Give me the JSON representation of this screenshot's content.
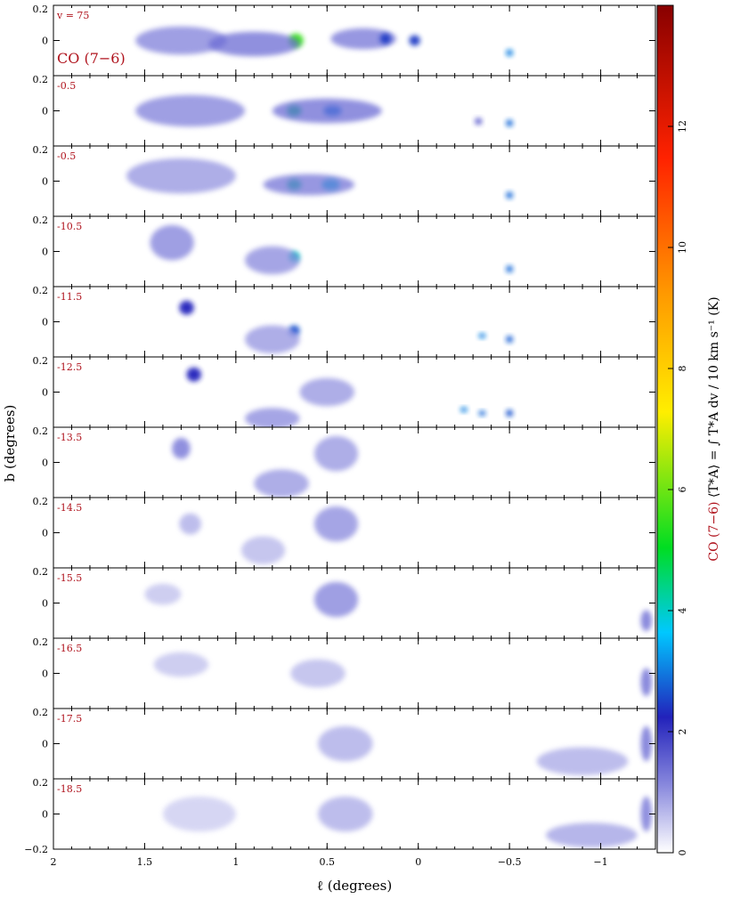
{
  "chart_data": {
    "type": "heatmap",
    "line_label": "CO (7−6)",
    "vlsr_label": "v = 75",
    "xlabel": "ℓ (degrees)",
    "ylabel": "b (degrees)",
    "xlim": [
      2,
      -1.3
    ],
    "ylim": [
      -0.2,
      0.2
    ],
    "x_ticks": [
      {
        "value": 2,
        "label": "2"
      },
      {
        "value": 1.5,
        "label": "1.5"
      },
      {
        "value": 1,
        "label": "1"
      },
      {
        "value": 0.5,
        "label": "0.5"
      },
      {
        "value": 0,
        "label": "0"
      },
      {
        "value": -0.5,
        "label": "−0.5"
      },
      {
        "value": -1,
        "label": "−1"
      }
    ],
    "y_ticks": [
      {
        "value": 0.2,
        "label": "0.2"
      },
      {
        "value": 0,
        "label": "0"
      },
      {
        "value": -0.2,
        "label": "−0.2"
      }
    ],
    "panels": [
      {
        "velocity": "75",
        "label": "v = 75"
      },
      {
        "velocity": "-0.5",
        "label": "-0.5"
      },
      {
        "velocity": "-0.5",
        "label": "-0.5"
      },
      {
        "velocity": "-10.5",
        "label": "-10.5"
      },
      {
        "velocity": "-11.5",
        "label": "-11.5"
      },
      {
        "velocity": "-12.5",
        "label": "-12.5"
      },
      {
        "velocity": "-13.5",
        "label": "-13.5"
      },
      {
        "velocity": "-14.5",
        "label": "-14.5"
      },
      {
        "velocity": "-15.5",
        "label": "-15.5"
      },
      {
        "velocity": "-16.5",
        "label": "-16.5"
      },
      {
        "velocity": "-17.5",
        "label": "-17.5"
      },
      {
        "velocity": "-18.5",
        "label": "-18.5"
      }
    ],
    "colorbar": {
      "label_prefix": "CO (7−6)",
      "label_rest": " ⟨T*A⟩ = ∫ T*A dv / 10 km s⁻¹ (K)",
      "range": [
        0,
        14
      ],
      "ticks": [
        {
          "value": 0,
          "label": "0"
        },
        {
          "value": 2,
          "label": "2"
        },
        {
          "value": 4,
          "label": "4"
        },
        {
          "value": 6,
          "label": "6"
        },
        {
          "value": 8,
          "label": "8"
        },
        {
          "value": 10,
          "label": "10"
        },
        {
          "value": 12,
          "label": "12"
        }
      ],
      "colors": [
        "#ffffff",
        "#3333cc",
        "#00d0ff",
        "#00dd00",
        "#ffee00",
        "#ff8800",
        "#ff2200",
        "#990000"
      ]
    },
    "emission_features": [
      {
        "panel": 0,
        "l": 1.3,
        "b": 0.0,
        "sl": 0.25,
        "sb": 0.08,
        "value": 1.2
      },
      {
        "panel": 0,
        "l": 0.67,
        "b": 0.0,
        "sl": 0.04,
        "sb": 0.04,
        "value": 5.5
      },
      {
        "panel": 0,
        "l": 0.9,
        "b": -0.02,
        "sl": 0.25,
        "sb": 0.07,
        "value": 1.4
      },
      {
        "panel": 0,
        "l": 0.3,
        "b": 0.01,
        "sl": 0.18,
        "sb": 0.06,
        "value": 1.3
      },
      {
        "panel": 0,
        "l": 0.18,
        "b": 0.01,
        "sl": 0.03,
        "sb": 0.03,
        "value": 2.4
      },
      {
        "panel": 0,
        "l": 0.02,
        "b": 0.0,
        "sl": 0.03,
        "sb": 0.03,
        "value": 2.4
      },
      {
        "panel": 0,
        "l": -0.5,
        "b": -0.07,
        "sl": 0.015,
        "sb": 0.02,
        "value": 3.0
      },
      {
        "panel": 1,
        "l": 1.25,
        "b": 0.0,
        "sl": 0.3,
        "sb": 0.09,
        "value": 1.2
      },
      {
        "panel": 1,
        "l": 0.68,
        "b": 0.0,
        "sl": 0.04,
        "sb": 0.03,
        "value": 4.5
      },
      {
        "panel": 1,
        "l": 0.47,
        "b": 0.0,
        "sl": 0.05,
        "sb": 0.03,
        "value": 3.0
      },
      {
        "panel": 1,
        "l": 0.5,
        "b": 0.0,
        "sl": 0.3,
        "sb": 0.07,
        "value": 1.4
      },
      {
        "panel": 1,
        "l": -0.33,
        "b": -0.06,
        "sl": 0.02,
        "sb": 0.02,
        "value": 2.0
      },
      {
        "panel": 1,
        "l": -0.5,
        "b": -0.07,
        "sl": 0.015,
        "sb": 0.02,
        "value": 2.8
      },
      {
        "panel": 2,
        "l": 1.3,
        "b": 0.03,
        "sl": 0.3,
        "sb": 0.1,
        "value": 1.0
      },
      {
        "panel": 2,
        "l": 0.68,
        "b": -0.02,
        "sl": 0.04,
        "sb": 0.03,
        "value": 4.3
      },
      {
        "panel": 2,
        "l": 0.48,
        "b": -0.02,
        "sl": 0.05,
        "sb": 0.03,
        "value": 3.8
      },
      {
        "panel": 2,
        "l": 0.6,
        "b": -0.02,
        "sl": 0.25,
        "sb": 0.06,
        "value": 1.3
      },
      {
        "panel": 2,
        "l": -0.5,
        "b": -0.08,
        "sl": 0.015,
        "sb": 0.02,
        "value": 2.8
      },
      {
        "panel": 3,
        "l": 1.35,
        "b": 0.05,
        "sl": 0.12,
        "sb": 0.1,
        "value": 1.2
      },
      {
        "panel": 3,
        "l": 0.68,
        "b": -0.03,
        "sl": 0.03,
        "sb": 0.03,
        "value": 4.0
      },
      {
        "panel": 3,
        "l": 0.8,
        "b": -0.05,
        "sl": 0.15,
        "sb": 0.08,
        "value": 1.1
      },
      {
        "panel": 3,
        "l": -0.5,
        "b": -0.1,
        "sl": 0.015,
        "sb": 0.02,
        "value": 2.8
      },
      {
        "panel": 4,
        "l": 1.27,
        "b": 0.08,
        "sl": 0.04,
        "sb": 0.04,
        "value": 2.2
      },
      {
        "panel": 4,
        "l": 0.68,
        "b": -0.05,
        "sl": 0.03,
        "sb": 0.03,
        "value": 2.6
      },
      {
        "panel": 4,
        "l": 0.8,
        "b": -0.1,
        "sl": 0.15,
        "sb": 0.08,
        "value": 1.0
      },
      {
        "panel": 4,
        "l": -0.35,
        "b": -0.08,
        "sl": 0.015,
        "sb": 0.015,
        "value": 3.0
      },
      {
        "panel": 4,
        "l": -0.5,
        "b": -0.1,
        "sl": 0.015,
        "sb": 0.02,
        "value": 2.7
      },
      {
        "panel": 5,
        "l": 1.23,
        "b": 0.1,
        "sl": 0.04,
        "sb": 0.04,
        "value": 2.2
      },
      {
        "panel": 5,
        "l": 0.8,
        "b": -0.15,
        "sl": 0.15,
        "sb": 0.06,
        "value": 1.1
      },
      {
        "panel": 5,
        "l": 0.5,
        "b": 0.0,
        "sl": 0.15,
        "sb": 0.08,
        "value": 1.0
      },
      {
        "panel": 5,
        "l": -0.25,
        "b": -0.1,
        "sl": 0.015,
        "sb": 0.015,
        "value": 3.0
      },
      {
        "panel": 5,
        "l": -0.35,
        "b": -0.12,
        "sl": 0.015,
        "sb": 0.015,
        "value": 2.8
      },
      {
        "panel": 5,
        "l": -0.5,
        "b": -0.12,
        "sl": 0.015,
        "sb": 0.02,
        "value": 2.6
      },
      {
        "panel": 6,
        "l": 1.3,
        "b": 0.08,
        "sl": 0.05,
        "sb": 0.06,
        "value": 1.4
      },
      {
        "panel": 6,
        "l": 0.75,
        "b": -0.12,
        "sl": 0.15,
        "sb": 0.08,
        "value": 1.0
      },
      {
        "panel": 6,
        "l": 0.45,
        "b": 0.05,
        "sl": 0.12,
        "sb": 0.1,
        "value": 1.0
      },
      {
        "panel": 7,
        "l": 1.25,
        "b": 0.05,
        "sl": 0.06,
        "sb": 0.06,
        "value": 0.8
      },
      {
        "panel": 7,
        "l": 0.85,
        "b": -0.1,
        "sl": 0.12,
        "sb": 0.08,
        "value": 0.7
      },
      {
        "panel": 7,
        "l": 0.45,
        "b": 0.05,
        "sl": 0.12,
        "sb": 0.1,
        "value": 1.1
      },
      {
        "panel": 8,
        "l": 0.45,
        "b": 0.02,
        "sl": 0.12,
        "sb": 0.1,
        "value": 1.2
      },
      {
        "panel": 8,
        "l": 1.4,
        "b": 0.05,
        "sl": 0.1,
        "sb": 0.06,
        "value": 0.6
      },
      {
        "panel": 8,
        "l": -1.25,
        "b": -0.1,
        "sl": 0.03,
        "sb": 0.06,
        "value": 1.5
      },
      {
        "panel": 9,
        "l": 1.3,
        "b": 0.05,
        "sl": 0.15,
        "sb": 0.07,
        "value": 0.6
      },
      {
        "panel": 9,
        "l": 0.55,
        "b": 0.0,
        "sl": 0.15,
        "sb": 0.08,
        "value": 0.7
      },
      {
        "panel": 9,
        "l": -1.25,
        "b": -0.05,
        "sl": 0.03,
        "sb": 0.08,
        "value": 1.5
      },
      {
        "panel": 10,
        "l": 0.4,
        "b": 0.0,
        "sl": 0.15,
        "sb": 0.1,
        "value": 0.8
      },
      {
        "panel": 10,
        "l": -0.9,
        "b": -0.1,
        "sl": 0.25,
        "sb": 0.08,
        "value": 0.8
      },
      {
        "panel": 10,
        "l": -1.25,
        "b": 0.0,
        "sl": 0.03,
        "sb": 0.1,
        "value": 1.5
      },
      {
        "panel": 11,
        "l": 0.4,
        "b": 0.0,
        "sl": 0.15,
        "sb": 0.1,
        "value": 0.8
      },
      {
        "panel": 11,
        "l": -0.95,
        "b": -0.12,
        "sl": 0.25,
        "sb": 0.07,
        "value": 0.9
      },
      {
        "panel": 11,
        "l": -1.25,
        "b": 0.0,
        "sl": 0.03,
        "sb": 0.1,
        "value": 1.4
      },
      {
        "panel": 11,
        "l": 1.2,
        "b": 0.0,
        "sl": 0.2,
        "sb": 0.1,
        "value": 0.5
      }
    ]
  }
}
